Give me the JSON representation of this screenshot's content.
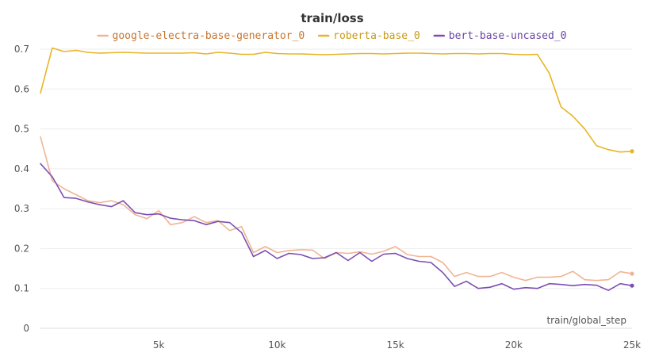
{
  "chart_data": {
    "type": "line",
    "title": "train/loss",
    "xlabel": "train/global_step",
    "ylabel": "",
    "xlim": [
      0,
      25000
    ],
    "ylim": [
      0,
      0.7
    ],
    "grid": true,
    "legend_placement": "top",
    "x_ticks": [
      5000,
      10000,
      15000,
      20000,
      25000
    ],
    "x_tick_labels": [
      "5k",
      "10k",
      "15k",
      "20k",
      "25k"
    ],
    "y_ticks": [
      0,
      0.1,
      0.2,
      0.3,
      0.4,
      0.5,
      0.6,
      0.7
    ],
    "y_tick_labels": [
      "0",
      "0.1",
      "0.2",
      "0.3",
      "0.4",
      "0.5",
      "0.6",
      "0.7"
    ],
    "series": [
      {
        "name": "google-electra-base-generator_0",
        "color": "#f0b494",
        "legend_color": "#c8742e",
        "x": [
          0,
          500,
          1000,
          1500,
          2000,
          2500,
          3000,
          3500,
          4000,
          4500,
          5000,
          5500,
          6000,
          6500,
          7000,
          7500,
          8000,
          8500,
          9000,
          9500,
          10000,
          10500,
          11000,
          11500,
          12000,
          12500,
          13000,
          13500,
          14000,
          14500,
          15000,
          15500,
          16000,
          16500,
          17000,
          17500,
          18000,
          18500,
          19000,
          19500,
          20000,
          20500,
          21000,
          21500,
          22000,
          22500,
          23000,
          23500,
          24000,
          24500,
          25000
        ],
        "values": [
          0.48,
          0.37,
          0.35,
          0.335,
          0.32,
          0.315,
          0.32,
          0.31,
          0.285,
          0.275,
          0.295,
          0.26,
          0.265,
          0.28,
          0.265,
          0.27,
          0.245,
          0.255,
          0.19,
          0.205,
          0.19,
          0.195,
          0.197,
          0.196,
          0.175,
          0.19,
          0.188,
          0.192,
          0.186,
          0.193,
          0.205,
          0.185,
          0.18,
          0.18,
          0.165,
          0.13,
          0.14,
          0.13,
          0.13,
          0.14,
          0.128,
          0.12,
          0.128,
          0.128,
          0.13,
          0.143,
          0.122,
          0.12,
          0.122,
          0.142,
          0.137
        ]
      },
      {
        "name": "roberta-base_0",
        "color": "#e8b526",
        "legend_color": "#c99a14",
        "x": [
          0,
          500,
          1000,
          1500,
          2000,
          2500,
          3000,
          3500,
          4000,
          4500,
          5000,
          5500,
          6000,
          6500,
          7000,
          7500,
          8000,
          8500,
          9000,
          9500,
          10000,
          10500,
          11000,
          11500,
          12000,
          12500,
          13000,
          13500,
          14000,
          14500,
          15000,
          15500,
          16000,
          16500,
          17000,
          17500,
          18000,
          18500,
          19000,
          19500,
          20000,
          20500,
          21000,
          21500,
          22000,
          22500,
          23000,
          23500,
          24000,
          24500,
          25000
        ],
        "values": [
          0.59,
          0.703,
          0.694,
          0.697,
          0.692,
          0.69,
          0.691,
          0.692,
          0.691,
          0.69,
          0.69,
          0.69,
          0.69,
          0.691,
          0.688,
          0.692,
          0.69,
          0.687,
          0.687,
          0.692,
          0.689,
          0.688,
          0.688,
          0.687,
          0.686,
          0.687,
          0.688,
          0.689,
          0.689,
          0.688,
          0.689,
          0.69,
          0.69,
          0.689,
          0.688,
          0.689,
          0.689,
          0.688,
          0.689,
          0.689,
          0.687,
          0.686,
          0.687,
          0.64,
          0.555,
          0.532,
          0.5,
          0.458,
          0.448,
          0.442,
          0.444
        ]
      },
      {
        "name": "bert-base-uncased_0",
        "color": "#7b4fb2",
        "legend_color": "#6a45a6",
        "x": [
          0,
          500,
          1000,
          1500,
          2000,
          2500,
          3000,
          3500,
          4000,
          4500,
          5000,
          5500,
          6000,
          6500,
          7000,
          7500,
          8000,
          8500,
          9000,
          9500,
          10000,
          10500,
          11000,
          11500,
          12000,
          12500,
          13000,
          13500,
          14000,
          14500,
          15000,
          15500,
          16000,
          16500,
          17000,
          17500,
          18000,
          18500,
          19000,
          19500,
          20000,
          20500,
          21000,
          21500,
          22000,
          22500,
          23000,
          23500,
          24000,
          24500,
          25000
        ],
        "values": [
          0.413,
          0.38,
          0.328,
          0.326,
          0.317,
          0.31,
          0.305,
          0.32,
          0.29,
          0.285,
          0.287,
          0.276,
          0.272,
          0.27,
          0.26,
          0.268,
          0.265,
          0.24,
          0.18,
          0.195,
          0.175,
          0.188,
          0.185,
          0.175,
          0.177,
          0.19,
          0.17,
          0.19,
          0.168,
          0.186,
          0.188,
          0.175,
          0.168,
          0.165,
          0.14,
          0.105,
          0.118,
          0.1,
          0.103,
          0.112,
          0.098,
          0.102,
          0.1,
          0.112,
          0.11,
          0.107,
          0.11,
          0.108,
          0.095,
          0.112,
          0.107
        ]
      }
    ]
  }
}
